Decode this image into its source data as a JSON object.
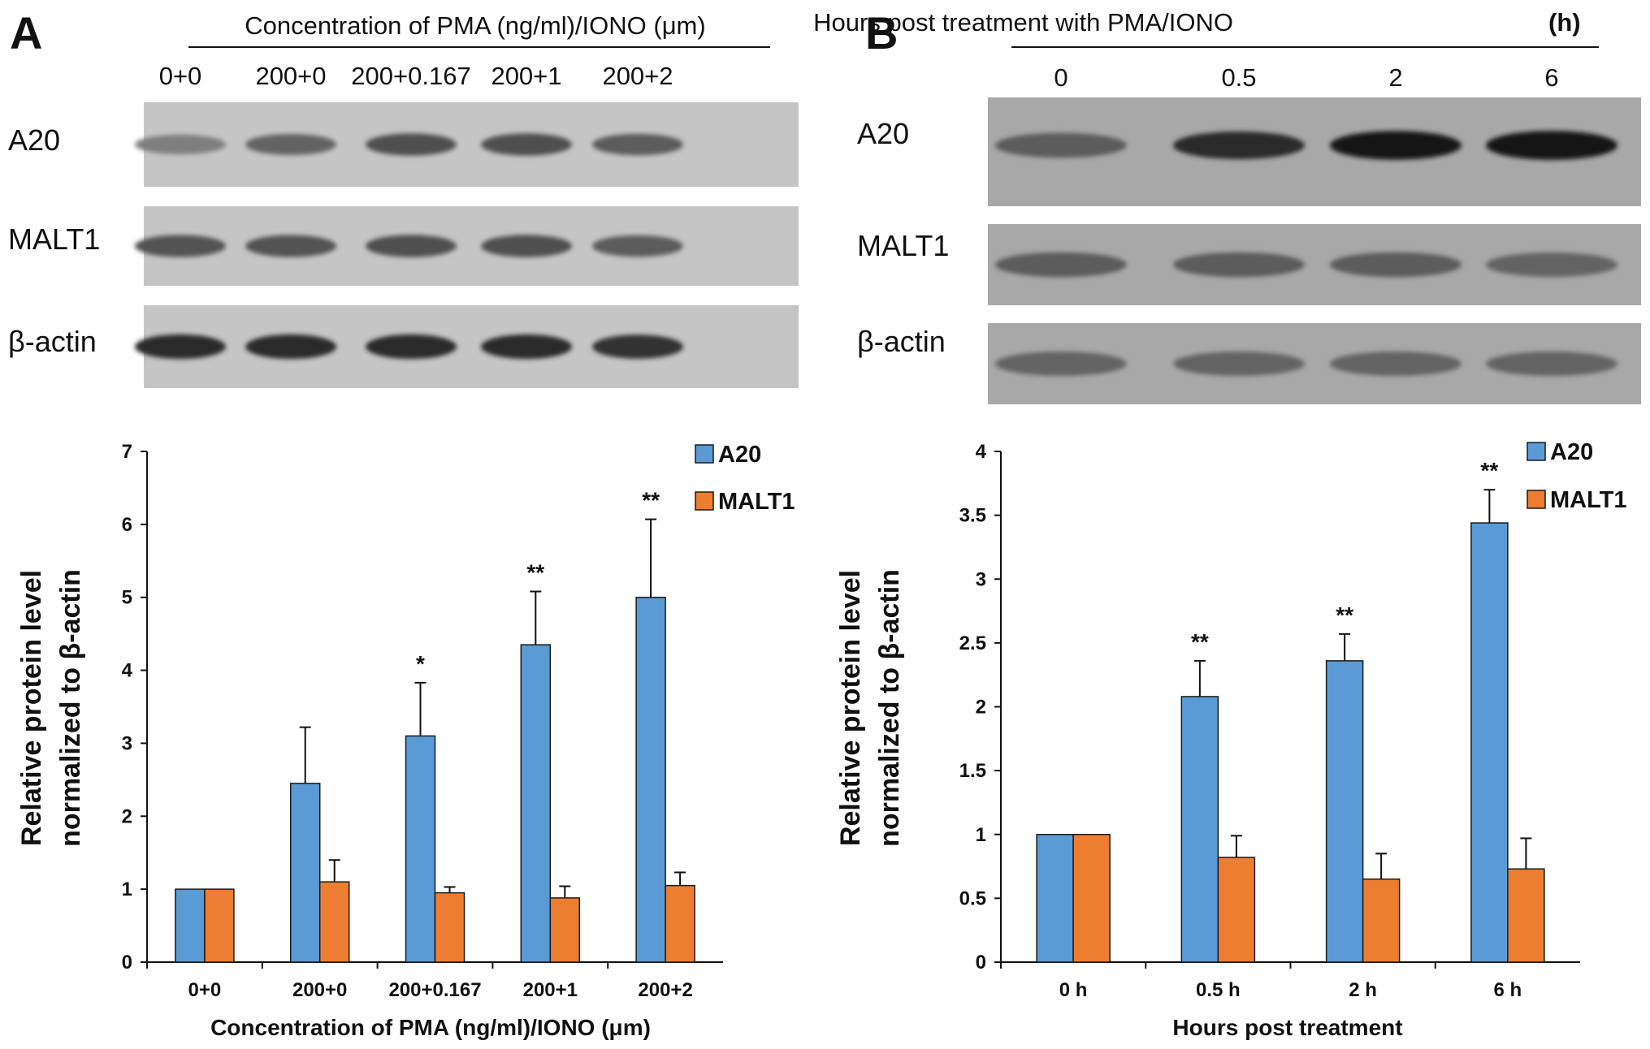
{
  "colors": {
    "a20": "#5b9bd5",
    "malt1": "#ed7d31",
    "bar_stroke": "#1a1a1a"
  },
  "panel_a": {
    "letter": "A",
    "blot": {
      "title": "Concentration of PMA (ng/ml)/IONO (μm)",
      "lanes": [
        "0+0",
        "200+0",
        "200+0.167",
        "200+1",
        "200+2"
      ],
      "rows": [
        {
          "label": "A20",
          "intensity": [
            0.35,
            0.5,
            0.62,
            0.62,
            0.55
          ]
        },
        {
          "label": "MALT1",
          "intensity": [
            0.6,
            0.6,
            0.62,
            0.62,
            0.55
          ]
        },
        {
          "label": "β-actin",
          "intensity": [
            0.85,
            0.85,
            0.85,
            0.85,
            0.8
          ]
        }
      ]
    },
    "chart_data": {
      "type": "bar",
      "categories": [
        "0+0",
        "200+0",
        "200+0.167",
        "200+1",
        "200+2"
      ],
      "series": [
        {
          "name": "A20",
          "values": [
            1,
            2.45,
            3.1,
            4.35,
            5.0
          ],
          "errors": [
            0,
            0.77,
            0.73,
            0.73,
            1.07
          ]
        },
        {
          "name": "MALT1",
          "values": [
            1,
            1.1,
            0.95,
            0.88,
            1.05
          ],
          "errors": [
            0,
            0.3,
            0.08,
            0.16,
            0.18
          ]
        }
      ],
      "significance": [
        "",
        "",
        "*",
        "**",
        "**"
      ],
      "xlabel": "Concentration of PMA (ng/ml)/IONO (μm)",
      "ylabel_lines": [
        "Relative protein level",
        "normalized to β-actin"
      ],
      "ylim": [
        0,
        7
      ],
      "yticks": [
        0,
        1,
        2,
        3,
        4,
        5,
        6,
        7
      ],
      "ytick_labels": [
        "0",
        "1",
        "2",
        "3",
        "4",
        "5",
        "6",
        "7"
      ],
      "legend_position": "top-right",
      "grid": false
    }
  },
  "panel_b": {
    "letter": "B",
    "blot": {
      "title_main": "Hours post treatment with PMA/IONO",
      "title_unit": "(h)",
      "lanes": [
        "0",
        "0.5",
        "2",
        "6"
      ],
      "rows": [
        {
          "label": "A20",
          "intensity": [
            0.55,
            0.85,
            0.95,
            0.97
          ]
        },
        {
          "label": "MALT1",
          "intensity": [
            0.55,
            0.55,
            0.55,
            0.5
          ]
        },
        {
          "label": "β-actin",
          "intensity": [
            0.5,
            0.5,
            0.5,
            0.5
          ]
        }
      ]
    },
    "chart_data": {
      "type": "bar",
      "categories": [
        "0 h",
        "0.5 h",
        "2 h",
        "6 h"
      ],
      "series": [
        {
          "name": "A20",
          "values": [
            1,
            2.08,
            2.36,
            3.44
          ],
          "errors": [
            0,
            0.28,
            0.21,
            0.26
          ]
        },
        {
          "name": "MALT1",
          "values": [
            1,
            0.82,
            0.65,
            0.73
          ],
          "errors": [
            0,
            0.17,
            0.2,
            0.24
          ]
        }
      ],
      "significance": [
        "",
        "**",
        "**",
        "**"
      ],
      "xlabel": "Hours post treatment",
      "ylabel_lines": [
        "Relative protein level",
        "normalized to β-actin"
      ],
      "ylim": [
        0,
        4
      ],
      "yticks": [
        0,
        0.5,
        1,
        1.5,
        2,
        2.5,
        3,
        3.5,
        4
      ],
      "ytick_labels": [
        "0",
        "0.5",
        "1",
        "1.5",
        "2",
        "2.5",
        "3",
        "3.5",
        "4"
      ],
      "legend_position": "top-right",
      "grid": false
    }
  }
}
